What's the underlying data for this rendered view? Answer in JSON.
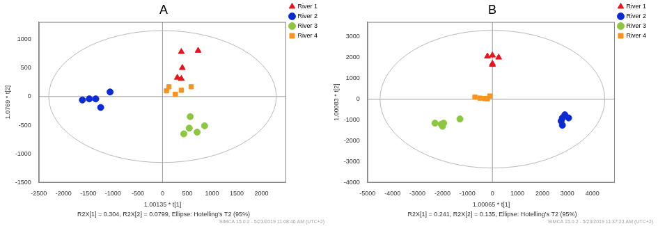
{
  "chart_data": [
    {
      "type": "scatter",
      "title": "A",
      "x_label": "1.00135 * t[1]",
      "y_label": "1.0769 * t[2]",
      "subtitle": "R2X[1] = 0.304, R2X[2] = 0.0799, Ellipse: Hotelling's T2 (95%)",
      "annotations": [
        "SIMCA 15.0.2 - 5/23/2019 11:08:46 AM (UTC+2)"
      ],
      "xlim": [
        -2500,
        2500
      ],
      "xticks": [
        -2500,
        -2000,
        -1500,
        -1000,
        -500,
        0,
        500,
        1000,
        1500,
        2000
      ],
      "ylim": [
        -1500,
        1300
      ],
      "yticks": [
        -1500,
        -1000,
        -500,
        0,
        500,
        1000
      ],
      "grid": false,
      "legend": "upper right",
      "ellipse": {
        "center": [
          0,
          0
        ],
        "x_radius": 2300,
        "y_radius": 1150
      },
      "series": [
        {
          "name": "River 1",
          "color": "#e8141c",
          "marker": "triangle",
          "x": [
            380,
            720,
            400,
            300,
            380
          ],
          "y": [
            780,
            800,
            500,
            330,
            310
          ]
        },
        {
          "name": "River 2",
          "color": "#0a2bd6",
          "marker": "circle",
          "x": [
            -1620,
            -1480,
            -1350,
            -1250,
            -1060
          ],
          "y": [
            -60,
            -40,
            -40,
            -190,
            80
          ]
        },
        {
          "name": "River 3",
          "color": "#8dc63f",
          "marker": "circle",
          "x": [
            560,
            540,
            430,
            700,
            850
          ],
          "y": [
            -350,
            -550,
            -650,
            -620,
            -510
          ]
        },
        {
          "name": "River 4",
          "color": "#f7941d",
          "marker": "square",
          "x": [
            80,
            130,
            260,
            380,
            580
          ],
          "y": [
            100,
            170,
            40,
            110,
            170
          ]
        }
      ]
    },
    {
      "type": "scatter",
      "title": "B",
      "x_label": "1.00065 * t[1]",
      "y_label": "1.00083 * t[2]",
      "subtitle": "R2X[1] = 0.241, R2X[2] = 0.135, Ellipse: Hotelling's T2 (95%)",
      "annotations": [
        "SIMCA 15.0.2 - 5/23/2019 11:37:23 AM (UTC+2)"
      ],
      "xlim": [
        -5000,
        4900
      ],
      "xticks": [
        -5000,
        -4000,
        -3000,
        -2000,
        -1000,
        0,
        1000,
        2000,
        3000,
        4000
      ],
      "ylim": [
        -4000,
        3700
      ],
      "yticks": [
        -4000,
        -3000,
        -2000,
        -1000,
        0,
        1000,
        2000,
        3000
      ],
      "grid": false,
      "legend": "upper right",
      "ellipse": {
        "center": [
          0,
          0
        ],
        "x_radius": 4500,
        "y_radius": 3300
      },
      "series": [
        {
          "name": "River 1",
          "color": "#e8141c",
          "marker": "triangle",
          "x": [
            -200,
            0,
            250,
            0,
            0
          ],
          "y": [
            2050,
            2100,
            2000,
            1700,
            1650
          ]
        },
        {
          "name": "River 2",
          "color": "#0a2bd6",
          "marker": "circle",
          "x": [
            2750,
            2800,
            2900,
            3050,
            2800
          ],
          "y": [
            -1050,
            -1250,
            -750,
            -900,
            -900
          ]
        },
        {
          "name": "River 3",
          "color": "#8dc63f",
          "marker": "circle",
          "x": [
            -2300,
            -2050,
            -2000,
            -1950,
            -1300
          ],
          "y": [
            -1150,
            -1200,
            -1300,
            -1150,
            -950
          ]
        },
        {
          "name": "River 4",
          "color": "#f7941d",
          "marker": "square",
          "x": [
            -700,
            -500,
            -300,
            -200,
            -100
          ],
          "y": [
            100,
            50,
            30,
            20,
            150
          ]
        }
      ]
    }
  ]
}
